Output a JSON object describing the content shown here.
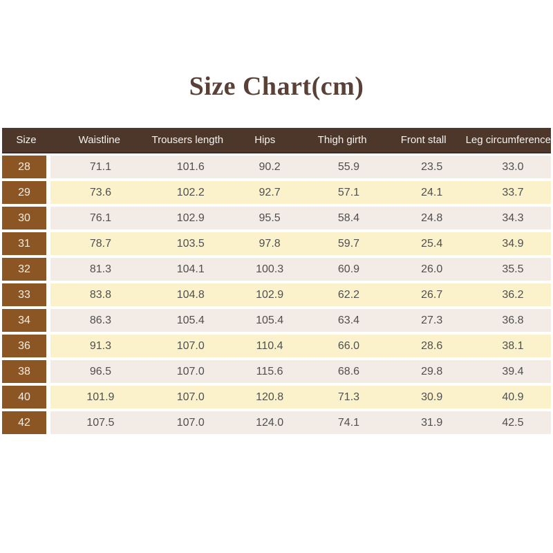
{
  "title": "Size Chart(cm)",
  "chart_data": {
    "type": "table",
    "columns": [
      "Size",
      "Waistline",
      "Trousers length",
      "Hips",
      "Thigh girth",
      "Front stall",
      "Leg circumference"
    ],
    "rows": [
      [
        "28",
        "71.1",
        "101.6",
        "90.2",
        "55.9",
        "23.5",
        "33.0"
      ],
      [
        "29",
        "73.6",
        "102.2",
        "92.7",
        "57.1",
        "24.1",
        "33.7"
      ],
      [
        "30",
        "76.1",
        "102.9",
        "95.5",
        "58.4",
        "24.8",
        "34.3"
      ],
      [
        "31",
        "78.7",
        "103.5",
        "97.8",
        "59.7",
        "25.4",
        "34.9"
      ],
      [
        "32",
        "81.3",
        "104.1",
        "100.3",
        "60.9",
        "26.0",
        "35.5"
      ],
      [
        "33",
        "83.8",
        "104.8",
        "102.9",
        "62.2",
        "26.7",
        "36.2"
      ],
      [
        "34",
        "86.3",
        "105.4",
        "105.4",
        "63.4",
        "27.3",
        "36.8"
      ],
      [
        "36",
        "91.3",
        "107.0",
        "110.4",
        "66.0",
        "28.6",
        "38.1"
      ],
      [
        "38",
        "96.5",
        "107.0",
        "115.6",
        "68.6",
        "29.8",
        "39.4"
      ],
      [
        "40",
        "101.9",
        "107.0",
        "120.8",
        "71.3",
        "30.9",
        "40.9"
      ],
      [
        "42",
        "107.5",
        "107.0",
        "124.0",
        "74.1",
        "31.9",
        "42.5"
      ]
    ]
  },
  "colors": {
    "title_text": "#5a4138",
    "header_bg": "#4d372b",
    "header_text": "#f7f3f0",
    "size_cell_bg": "#8c5624",
    "row_odd_bg": "#f2ebe6",
    "row_even_bg": "#fbf2cb",
    "value_text": "#4f4f4f"
  }
}
